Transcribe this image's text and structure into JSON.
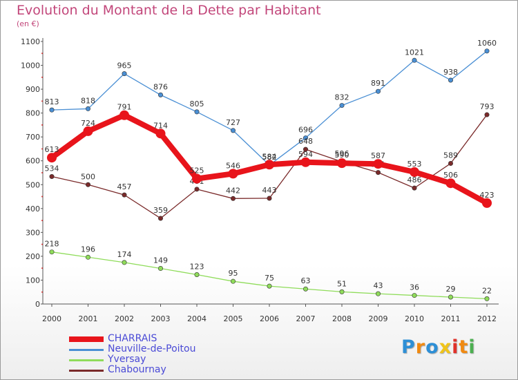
{
  "title": "Evolution du Montant de la Dette par Habitant",
  "unit": "(en €)",
  "logo": {
    "text": "Proxiti",
    "letters": [
      "P",
      "r",
      "o",
      "x",
      "i",
      "t",
      "i"
    ],
    "colors": [
      "#2d8fd6",
      "#f08a12",
      "#2d8fd6",
      "#f0c419",
      "#e0312a",
      "#f08a12",
      "#4caf50"
    ]
  },
  "chart_data": {
    "type": "line",
    "x": [
      "2000",
      "2001",
      "2002",
      "2003",
      "2004",
      "2005",
      "2006",
      "2007",
      "2008",
      "2009",
      "2010",
      "2011",
      "2012"
    ],
    "ylim": [
      0,
      1100
    ],
    "yticks": [
      0,
      100,
      200,
      300,
      400,
      500,
      600,
      700,
      800,
      900,
      1000,
      1100
    ],
    "grid": false,
    "legend_position": "bottom-left",
    "series": [
      {
        "name": "Neuville-de-Poitou",
        "color": "#4a8fd4",
        "values": [
          813,
          818,
          965,
          876,
          805,
          727,
          582,
          696,
          832,
          891,
          1021,
          938,
          1060
        ]
      },
      {
        "name": "Yversay",
        "color": "#8fdc5a",
        "values": [
          218,
          196,
          174,
          149,
          123,
          95,
          75,
          63,
          51,
          43,
          36,
          29,
          22
        ]
      },
      {
        "name": "Chabournay",
        "color": "#7a2a2a",
        "values": [
          534,
          500,
          457,
          359,
          481,
          442,
          443,
          648,
          596,
          551,
          486,
          589,
          793
        ]
      },
      {
        "name": "CHARRAIS",
        "color": "#e8141b",
        "values": [
          613,
          724,
          791,
          714,
          525,
          546,
          584,
          594,
          590,
          587,
          553,
          506,
          423
        ]
      }
    ],
    "legend_order": [
      "CHARRAIS",
      "Neuville-de-Poitou",
      "Yversay",
      "Chabournay"
    ]
  }
}
